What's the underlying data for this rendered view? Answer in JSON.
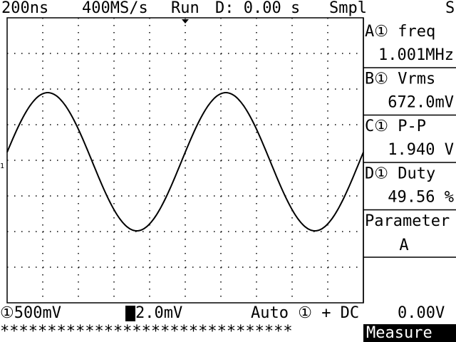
{
  "status_bar": {
    "timebase": "200ns",
    "sample_rate": "400MS/s",
    "run_state": "Run",
    "delay": "D: 0.00 s",
    "acquire_mode": "Smpl",
    "trigger_status": "S"
  },
  "measurements": [
    {
      "label": "A① freq",
      "value": "1.001MHz"
    },
    {
      "label": "B① Vrms",
      "value": "672.0mV"
    },
    {
      "label": "C① P-P",
      "value": "1.940 V"
    },
    {
      "label": "D① Duty",
      "value": "49.56 %"
    }
  ],
  "parameter": {
    "label": "Parameter",
    "value": "A"
  },
  "footer": {
    "ch1_scale": "①500mV",
    "ch2_scale": "2.0mV",
    "trigger": "Auto ① + DC",
    "trigger_level": "0.00V",
    "status_line": "*******************************",
    "menu": "Measure"
  }
}
